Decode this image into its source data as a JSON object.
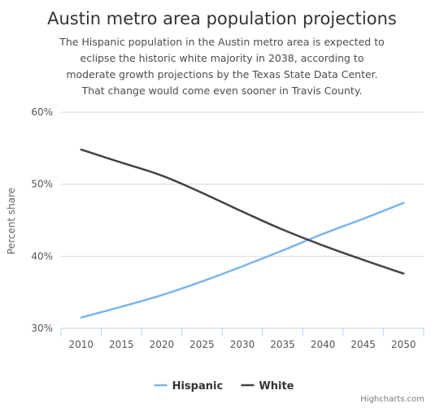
{
  "chart_data": {
    "type": "line",
    "title": "Austin metro area population projections",
    "subtitle": [
      "The Hispanic population in the Austin metro area is expected to",
      "eclipse the historic white majority in 2038, according to",
      "moderate growth projections by the Texas State Data Center.",
      "That change would come even sooner in Travis County."
    ],
    "ylabel": "Percent share",
    "ylim": [
      30,
      60
    ],
    "yticks": [
      30,
      40,
      50,
      60
    ],
    "ytick_labels": [
      "30%",
      "40%",
      "50%",
      "60%"
    ],
    "categories": [
      "2010",
      "2015",
      "2020",
      "2025",
      "2030",
      "2035",
      "2040",
      "2045",
      "2050"
    ],
    "grid": true,
    "legend_position": "bottom",
    "series": [
      {
        "name": "Hispanic",
        "color": "#7cb5ec",
        "values": [
          31.5,
          33.0,
          34.6,
          36.5,
          38.6,
          40.8,
          43.1,
          45.2,
          47.4
        ]
      },
      {
        "name": "White",
        "color": "#434348",
        "values": [
          54.8,
          53.0,
          51.2,
          48.8,
          46.2,
          43.7,
          41.5,
          39.5,
          37.6
        ]
      }
    ],
    "credits": "Highcharts.com"
  }
}
